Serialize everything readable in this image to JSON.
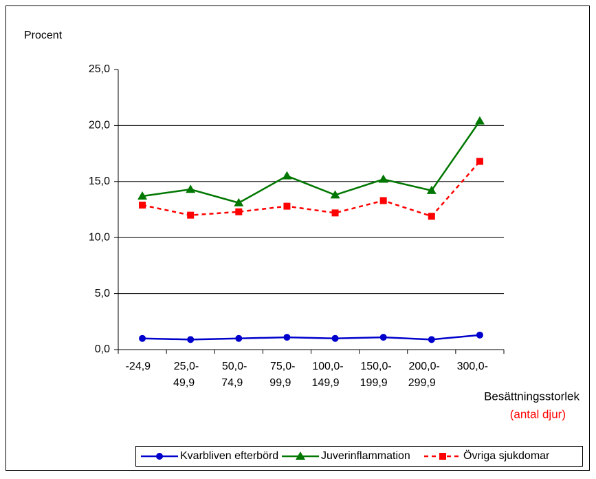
{
  "chart_data": {
    "type": "line",
    "y_label": "Procent",
    "x_label": "Besättningsstorlek",
    "x_label_note": "(antal djur)",
    "categories": [
      "-24,9",
      "25,0-49,9",
      "50,0-74,9",
      "75,0-99,9",
      "100,0-149,9",
      "150,0-199,9",
      "200,0-299,9",
      "300,0-"
    ],
    "series": [
      {
        "name": "Kvarbliven efterbörd",
        "color": "#0000cc",
        "marker": "circle",
        "dashed": false,
        "values": [
          1.0,
          0.9,
          1.0,
          1.1,
          1.0,
          1.1,
          0.9,
          1.3
        ]
      },
      {
        "name": "Juverinflammation",
        "color": "#007700",
        "marker": "triangle",
        "dashed": false,
        "values": [
          13.7,
          14.3,
          13.1,
          15.5,
          13.8,
          15.2,
          14.2,
          20.4
        ]
      },
      {
        "name": "Övriga sjukdomar",
        "color": "#ff0000",
        "marker": "square",
        "dashed": true,
        "values": [
          12.9,
          12.0,
          12.3,
          12.8,
          12.2,
          13.3,
          11.9,
          16.8
        ]
      }
    ],
    "ylim": [
      0,
      25
    ],
    "yticks": [
      {
        "value": 0,
        "label": "0,0"
      },
      {
        "value": 5,
        "label": "5,0"
      },
      {
        "value": 10,
        "label": "10,0"
      },
      {
        "value": 15,
        "label": "15,0"
      },
      {
        "value": 20,
        "label": "20,0"
      },
      {
        "value": 25,
        "label": "25,0"
      }
    ],
    "grid": true,
    "legend": "bottom"
  }
}
